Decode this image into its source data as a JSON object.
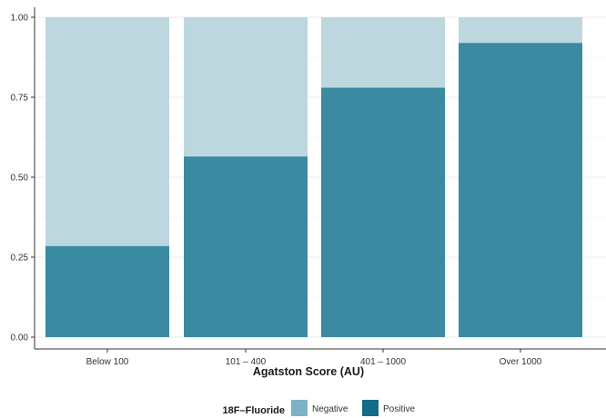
{
  "chart_data": {
    "type": "bar",
    "stacked": true,
    "title": "",
    "xlabel": "Agatston Score (AU)",
    "ylabel": "",
    "ylim": [
      0,
      1
    ],
    "yticks": [
      "0.00",
      "0.25",
      "0.50",
      "0.75",
      "1.00"
    ],
    "categories": [
      "Below 100",
      "101 – 400",
      "401 – 1000",
      "Over 1000"
    ],
    "series": [
      {
        "name": "Positive",
        "values": [
          0.285,
          0.565,
          0.78,
          0.92
        ]
      },
      {
        "name": "Negative",
        "values": [
          0.715,
          0.435,
          0.22,
          0.08
        ]
      }
    ],
    "legend": {
      "title": "18F–Fluoride",
      "position": "bottom",
      "entries": [
        "Negative",
        "Positive"
      ]
    },
    "colors": {
      "Positive": "#3a8aa2",
      "Negative": "#bdd7df",
      "legend_Negative": "#7bb3c4",
      "legend_Positive": "#136c87"
    },
    "grid": true
  }
}
